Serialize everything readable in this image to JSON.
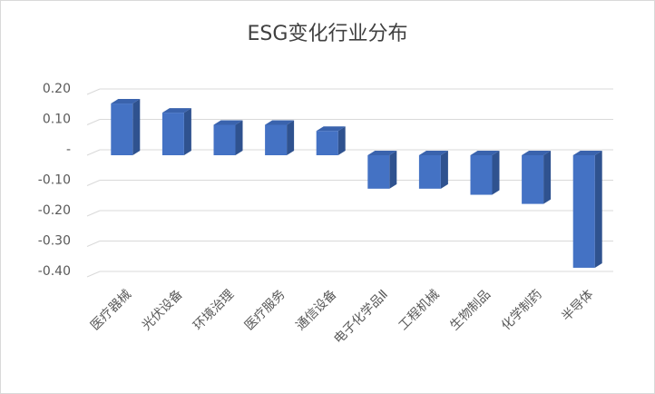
{
  "chart_data": {
    "type": "bar",
    "title": "ESG变化行业分布",
    "categories": [
      "医疗器械",
      "光伏设备",
      "环境治理",
      "医疗服务",
      "通信设备",
      "电子化学品Ⅱ",
      "工程机械",
      "生物制品",
      "化学制药",
      "半导体"
    ],
    "values": [
      0.17,
      0.14,
      0.1,
      0.1,
      0.08,
      -0.11,
      -0.11,
      -0.13,
      -0.16,
      -0.37
    ],
    "color": "#4472c4",
    "ylim": [
      -0.4,
      0.2
    ],
    "yticks": [
      {
        "value": 0.2,
        "label": "0.20"
      },
      {
        "value": 0.1,
        "label": "0.10"
      },
      {
        "value": 0,
        "label": "-"
      },
      {
        "value": -0.1,
        "label": "-0.10"
      },
      {
        "value": -0.2,
        "label": "-0.20"
      },
      {
        "value": -0.3,
        "label": "-0.30"
      },
      {
        "value": -0.4,
        "label": "-0.40"
      }
    ],
    "grid": true
  }
}
